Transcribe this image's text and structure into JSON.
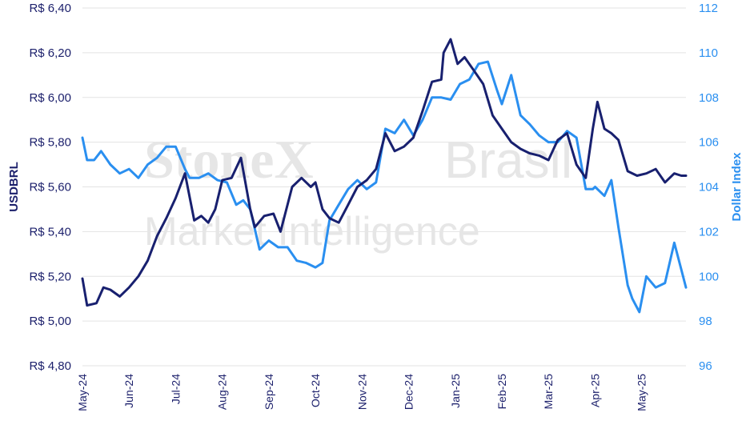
{
  "watermark": {
    "brand": "StoneX",
    "brand2": "Brasil",
    "sub": "Market Intelligence"
  },
  "chart_data": {
    "type": "line",
    "title": "",
    "xlabel": "",
    "ylabel_left": "USDBRL",
    "ylabel_right": "Dollar Index",
    "y_left_range": [
      4.8,
      6.4
    ],
    "y_right_range": [
      96,
      112
    ],
    "y_left_ticks": [
      "R$ 4,80",
      "R$ 5,00",
      "R$ 5,20",
      "R$ 5,40",
      "R$ 5,60",
      "R$ 5,80",
      "R$ 6,00",
      "R$ 6,20",
      "R$ 6,40"
    ],
    "y_left_tick_values": [
      4.8,
      5.0,
      5.2,
      5.4,
      5.6,
      5.8,
      6.0,
      6.2,
      6.4
    ],
    "y_right_ticks": [
      "96",
      "98",
      "100",
      "102",
      "104",
      "106",
      "108",
      "110",
      "112"
    ],
    "y_right_tick_values": [
      96,
      98,
      100,
      102,
      104,
      106,
      108,
      110,
      112
    ],
    "x_ticks": [
      "May-24",
      "Jun-24",
      "Jul-24",
      "Aug-24",
      "Sep-24",
      "Oct-24",
      "Nov-24",
      "Dec-24",
      "Jan-25",
      "Feb-25",
      "Mar-25",
      "Apr-25",
      "May-25"
    ],
    "x_range": [
      0,
      12.95
    ],
    "grid": "horizontal",
    "colors": {
      "usdbrl": "#18206f",
      "dxy": "#2a8ff0",
      "grid": "#e3e3e3"
    },
    "series": [
      {
        "name": "USDBRL",
        "axis": "left",
        "x": [
          0.0,
          0.1,
          0.3,
          0.45,
          0.6,
          0.8,
          1.0,
          1.2,
          1.4,
          1.6,
          1.8,
          2.0,
          2.2,
          2.4,
          2.55,
          2.7,
          2.85,
          3.0,
          3.2,
          3.4,
          3.6,
          3.7,
          3.9,
          4.1,
          4.25,
          4.5,
          4.7,
          4.9,
          5.0,
          5.15,
          5.3,
          5.5,
          5.7,
          5.9,
          6.1,
          6.3,
          6.5,
          6.7,
          6.9,
          7.1,
          7.3,
          7.5,
          7.7,
          7.75,
          7.9,
          8.05,
          8.2,
          8.4,
          8.6,
          8.8,
          9.0,
          9.2,
          9.4,
          9.6,
          9.8,
          10.0,
          10.2,
          10.4,
          10.6,
          10.8,
          10.95,
          11.05,
          11.2,
          11.35,
          11.5,
          11.7,
          11.9,
          12.1,
          12.3,
          12.5,
          12.7,
          12.85,
          12.95
        ],
        "y": [
          5.19,
          5.07,
          5.08,
          5.15,
          5.14,
          5.11,
          5.15,
          5.2,
          5.27,
          5.38,
          5.46,
          5.55,
          5.66,
          5.45,
          5.47,
          5.44,
          5.5,
          5.63,
          5.64,
          5.73,
          5.5,
          5.42,
          5.47,
          5.48,
          5.4,
          5.6,
          5.64,
          5.6,
          5.62,
          5.5,
          5.46,
          5.44,
          5.52,
          5.6,
          5.63,
          5.68,
          5.84,
          5.76,
          5.78,
          5.82,
          5.94,
          6.07,
          6.08,
          6.2,
          6.26,
          6.15,
          6.18,
          6.12,
          6.06,
          5.92,
          5.86,
          5.8,
          5.77,
          5.75,
          5.74,
          5.72,
          5.81,
          5.84,
          5.7,
          5.64,
          5.86,
          5.98,
          5.86,
          5.84,
          5.81,
          5.67,
          5.65,
          5.66,
          5.68,
          5.62,
          5.66,
          5.65,
          5.65
        ]
      },
      {
        "name": "Dollar Index",
        "axis": "right",
        "x": [
          0.0,
          0.1,
          0.25,
          0.4,
          0.5,
          0.6,
          0.8,
          1.0,
          1.2,
          1.4,
          1.6,
          1.8,
          2.0,
          2.2,
          2.3,
          2.5,
          2.7,
          2.9,
          3.1,
          3.3,
          3.45,
          3.6,
          3.8,
          4.0,
          4.2,
          4.4,
          4.6,
          4.8,
          5.0,
          5.15,
          5.3,
          5.5,
          5.7,
          5.9,
          6.1,
          6.3,
          6.5,
          6.7,
          6.9,
          7.1,
          7.3,
          7.5,
          7.7,
          7.9,
          8.1,
          8.3,
          8.5,
          8.7,
          8.9,
          9.0,
          9.2,
          9.4,
          9.6,
          9.8,
          10.0,
          10.2,
          10.4,
          10.6,
          10.8,
          10.95,
          11.0,
          11.2,
          11.35,
          11.5,
          11.7,
          11.8,
          11.95,
          12.1,
          12.3,
          12.5,
          12.7,
          12.85,
          12.95
        ],
        "y": [
          106.2,
          105.2,
          105.2,
          105.6,
          105.3,
          105.0,
          104.6,
          104.8,
          104.4,
          105.0,
          105.3,
          105.8,
          105.8,
          104.8,
          104.4,
          104.4,
          104.6,
          104.3,
          104.2,
          103.2,
          103.4,
          103.0,
          101.2,
          101.6,
          101.3,
          101.3,
          100.7,
          100.6,
          100.4,
          100.6,
          102.5,
          103.2,
          103.9,
          104.3,
          103.9,
          104.2,
          106.6,
          106.4,
          107.0,
          106.3,
          107.0,
          108.0,
          108.0,
          107.9,
          108.6,
          108.8,
          109.5,
          109.6,
          108.3,
          107.7,
          109.0,
          107.2,
          106.8,
          106.3,
          106.0,
          106.0,
          106.5,
          106.2,
          103.9,
          103.9,
          104.0,
          103.6,
          104.3,
          102.2,
          99.6,
          99.0,
          98.4,
          100.0,
          99.5,
          99.7,
          101.5,
          100.3,
          99.5
        ]
      }
    ]
  }
}
